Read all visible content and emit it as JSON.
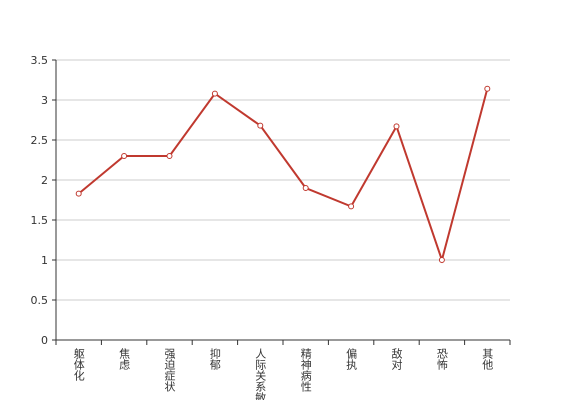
{
  "chart_data": {
    "type": "line",
    "categories": [
      "躯体化",
      "焦虑",
      "强迫症状",
      "抑郁",
      "人际关系敏感",
      "精神病性",
      "偏执",
      "敌对",
      "恐怖",
      "其他"
    ],
    "series": [
      {
        "color": "#c0392f",
        "values": [
          1.83,
          2.3,
          2.3,
          3.08,
          2.68,
          1.9,
          1.67,
          2.67,
          1.0,
          3.14
        ]
      }
    ],
    "ylim": [
      0,
      3.5
    ],
    "yticks": [
      0,
      0.5,
      1,
      1.5,
      2,
      2.5,
      3,
      3.5
    ],
    "grid": true
  }
}
